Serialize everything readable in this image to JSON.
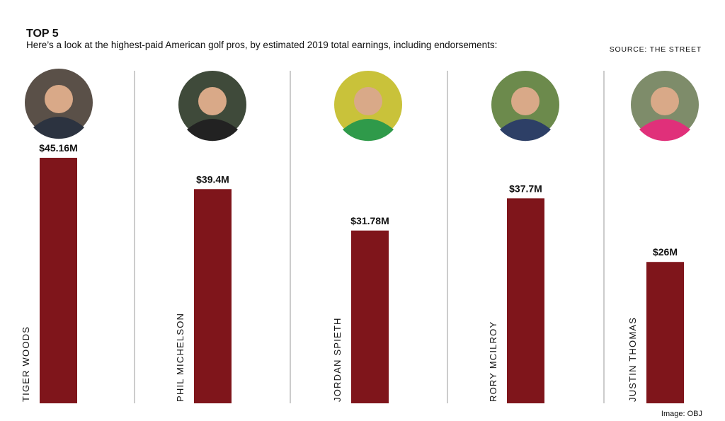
{
  "chart_data": {
    "type": "bar",
    "title": "TOP 5",
    "subtitle": "Here’s a look at the highest-paid American golf pros, by estimated 2019 total earnings, including endorsements:",
    "source": "SOURCE: THE STREET",
    "credit": "Image: OBJ",
    "categories": [
      "TIGER WOODS",
      "PHIL MICHELSON",
      "JORDAN SPIETH",
      "RORY MCILROY",
      "JUSTIN THOMAS"
    ],
    "values": [
      45.16,
      39.4,
      31.78,
      37.7,
      26
    ],
    "value_labels": [
      "$45.16M",
      "$39.4M",
      "$31.78M",
      "$37.7M",
      "$26M"
    ],
    "color": "#7f151b"
  }
}
